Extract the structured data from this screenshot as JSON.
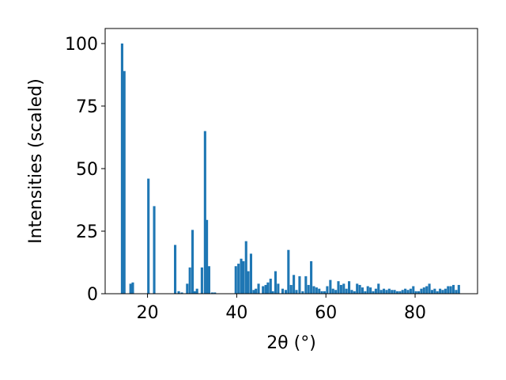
{
  "chart_data": {
    "type": "bar",
    "title": "",
    "xlabel": "2θ (°)",
    "ylabel": "Intensities (scaled)",
    "xlim": [
      10.5,
      94
    ],
    "ylim": [
      0,
      106
    ],
    "xticks": [
      20,
      40,
      60,
      80
    ],
    "yticks": [
      0,
      25,
      50,
      75,
      100
    ],
    "grid": false,
    "bar_width": 0.55,
    "bar_color": "#1f77b4",
    "x": [
      14.3,
      14.8,
      16.2,
      16.7,
      20.2,
      21.5,
      26.2,
      27.0,
      27.7,
      28.9,
      29.5,
      30.1,
      30.6,
      31.1,
      32.2,
      32.9,
      33.3,
      33.8,
      34.5,
      35.1,
      39.8,
      40.4,
      41.0,
      41.5,
      42.1,
      42.6,
      43.2,
      43.8,
      44.3,
      44.9,
      45.9,
      46.5,
      47.0,
      47.6,
      48.1,
      48.7,
      49.3,
      50.3,
      51.0,
      51.6,
      52.2,
      52.8,
      53.4,
      54.1,
      54.8,
      55.5,
      56.1,
      56.7,
      57.3,
      57.9,
      58.5,
      59.1,
      59.7,
      60.3,
      61.0,
      61.6,
      62.2,
      62.8,
      63.4,
      64.0,
      64.6,
      65.2,
      65.8,
      66.4,
      67.0,
      67.6,
      68.2,
      68.8,
      69.4,
      70.0,
      70.6,
      71.2,
      71.8,
      72.4,
      73.0,
      73.6,
      74.2,
      74.8,
      75.4,
      76.0,
      76.6,
      77.2,
      77.8,
      78.4,
      79.0,
      79.6,
      80.2,
      80.8,
      81.4,
      82.0,
      82.6,
      83.2,
      83.8,
      84.4,
      85.0,
      85.6,
      86.2,
      86.8,
      87.4,
      88.0,
      88.6,
      89.2,
      89.8
    ],
    "values": [
      100,
      89,
      4,
      4.5,
      46,
      35,
      19.5,
      1,
      0.5,
      4,
      10.5,
      25.5,
      1,
      2,
      10.5,
      65,
      29.5,
      11,
      0.5,
      0.5,
      11,
      12,
      14,
      13,
      21,
      9,
      16,
      1.5,
      2,
      4,
      3,
      3.5,
      4.5,
      6,
      1,
      9,
      4,
      2,
      1.5,
      17.5,
      3.5,
      7.5,
      1.5,
      7,
      1,
      7,
      3.5,
      13,
      3,
      2.5,
      2,
      1,
      1,
      3,
      5.5,
      2,
      1.5,
      5,
      3.5,
      4,
      2,
      5,
      1.5,
      1,
      4,
      3.5,
      2.5,
      1,
      3,
      2.5,
      1,
      2,
      4,
      1.5,
      2,
      1.5,
      2,
      1.5,
      1.5,
      1,
      1,
      1.5,
      2,
      1.5,
      2,
      3,
      1,
      1,
      2,
      2.5,
      3,
      4,
      1.5,
      2,
      1,
      2,
      1.5,
      2,
      3,
      3,
      3.5,
      1.5,
      3.5
    ]
  }
}
